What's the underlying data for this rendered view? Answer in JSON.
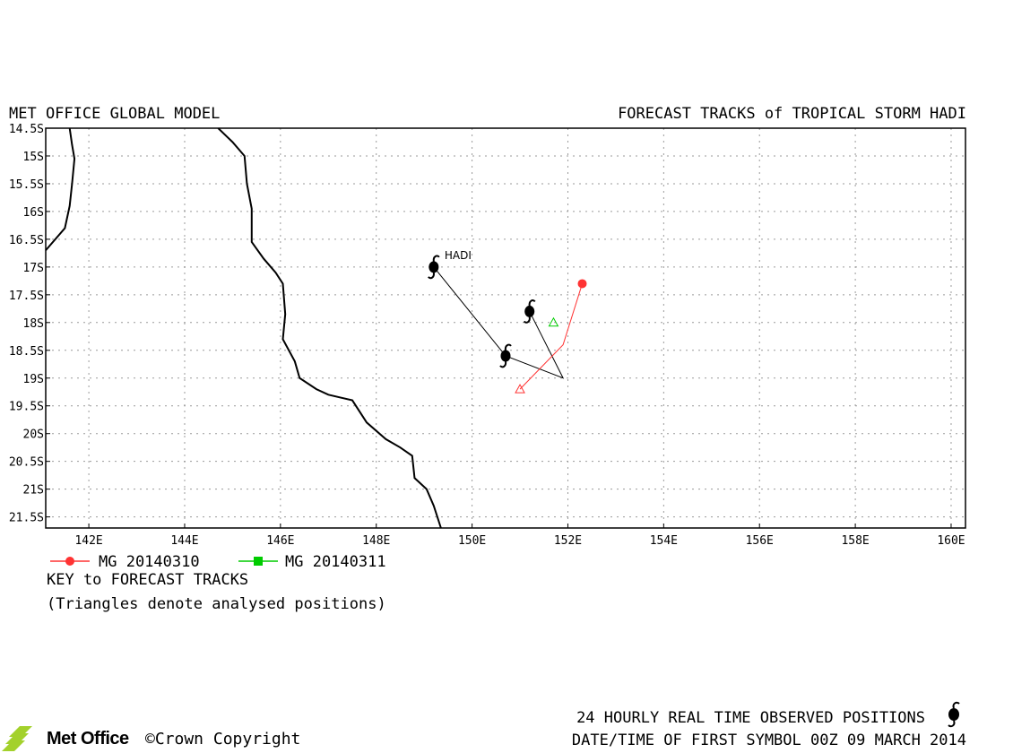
{
  "header": {
    "left_title": "MET OFFICE GLOBAL MODEL",
    "right_title": "FORECAST TRACKS of TROPICAL STORM HADI"
  },
  "map": {
    "lon_range": [
      141.1,
      160.3
    ],
    "lat_range": [
      -14.5,
      -21.7
    ],
    "lat_ticks": [
      {
        "v": -14.5,
        "label": "14.5S"
      },
      {
        "v": -15,
        "label": "15S"
      },
      {
        "v": -15.5,
        "label": "15.5S"
      },
      {
        "v": -16,
        "label": "16S"
      },
      {
        "v": -16.5,
        "label": "16.5S"
      },
      {
        "v": -17,
        "label": "17S"
      },
      {
        "v": -17.5,
        "label": "17.5S"
      },
      {
        "v": -18,
        "label": "18S"
      },
      {
        "v": -18.5,
        "label": "18.5S"
      },
      {
        "v": -19,
        "label": "19S"
      },
      {
        "v": -19.5,
        "label": "19.5S"
      },
      {
        "v": -20,
        "label": "20S"
      },
      {
        "v": -20.5,
        "label": "20.5S"
      },
      {
        "v": -21,
        "label": "21S"
      },
      {
        "v": -21.5,
        "label": "21.5S"
      }
    ],
    "lon_ticks": [
      {
        "v": 142,
        "label": "142E"
      },
      {
        "v": 144,
        "label": "144E"
      },
      {
        "v": 146,
        "label": "146E"
      },
      {
        "v": 148,
        "label": "148E"
      },
      {
        "v": 150,
        "label": "150E"
      },
      {
        "v": 152,
        "label": "152E"
      },
      {
        "v": 154,
        "label": "154E"
      },
      {
        "v": 156,
        "label": "156E"
      },
      {
        "v": 158,
        "label": "158E"
      },
      {
        "v": 160,
        "label": "160E"
      }
    ],
    "coastlines": [
      [
        [
          141.6,
          -14.5
        ],
        [
          141.65,
          -14.8
        ],
        [
          141.7,
          -15.05
        ],
        [
          141.65,
          -15.5
        ],
        [
          141.6,
          -15.9
        ],
        [
          141.5,
          -16.3
        ],
        [
          141.1,
          -16.7
        ]
      ],
      [
        [
          144.7,
          -14.5
        ],
        [
          145.0,
          -14.75
        ],
        [
          145.25,
          -15.0
        ],
        [
          145.3,
          -15.5
        ],
        [
          145.4,
          -15.95
        ],
        [
          145.4,
          -16.55
        ],
        [
          145.65,
          -16.85
        ],
        [
          145.9,
          -17.1
        ],
        [
          146.05,
          -17.3
        ],
        [
          146.1,
          -17.85
        ],
        [
          146.05,
          -18.3
        ],
        [
          146.3,
          -18.7
        ],
        [
          146.4,
          -19.0
        ],
        [
          146.75,
          -19.2
        ],
        [
          147.0,
          -19.3
        ],
        [
          147.5,
          -19.4
        ],
        [
          147.8,
          -19.8
        ],
        [
          148.2,
          -20.1
        ],
        [
          148.5,
          -20.25
        ],
        [
          148.75,
          -20.4
        ],
        [
          148.8,
          -20.8
        ],
        [
          149.05,
          -21.0
        ],
        [
          149.2,
          -21.3
        ],
        [
          149.35,
          -21.7
        ]
      ]
    ],
    "observed_track": {
      "label": "HADI",
      "points": [
        [
          149.2,
          -17.0
        ],
        [
          150.7,
          -18.6
        ],
        [
          151.9,
          -19.0
        ],
        [
          151.2,
          -17.8
        ]
      ],
      "symbols": [
        [
          149.2,
          -17.0
        ],
        [
          150.7,
          -18.6
        ],
        [
          151.2,
          -17.8
        ]
      ]
    },
    "forecast_tracks": [
      {
        "name": "MG 20140310",
        "color": "#ff3333",
        "symbol": "circle",
        "analysed": [
          151.0,
          -19.2
        ],
        "points": [
          [
            151.0,
            -19.2
          ],
          [
            151.9,
            -18.4
          ],
          [
            152.3,
            -17.3
          ]
        ]
      },
      {
        "name": "MG 20140311",
        "color": "#00cc00",
        "symbol": "square",
        "analysed": [
          151.7,
          -18.0
        ],
        "points": []
      }
    ]
  },
  "legend": {
    "entries": [
      {
        "label": "MG 20140310",
        "color": "#ff3333"
      },
      {
        "label": "MG 20140311",
        "color": "#00cc00"
      }
    ],
    "key_title": "KEY to FORECAST TRACKS",
    "key_note": "(Triangles denote analysed positions)"
  },
  "footer": {
    "logo_text": "Met Office",
    "copyright": "©Crown Copyright",
    "observed_note": "24 HOURLY REAL TIME OBSERVED POSITIONS",
    "datetime_note": "DATE/TIME OF FIRST SYMBOL 00Z 09 MARCH 2014"
  }
}
